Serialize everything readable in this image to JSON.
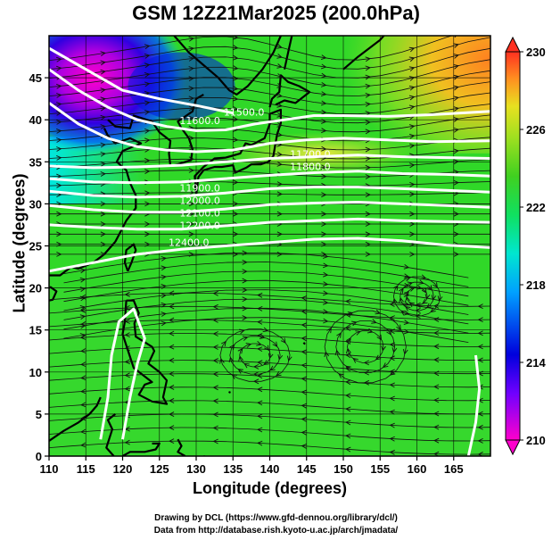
{
  "title": "GSM 12Z21Mar2025 (200.0hPa)",
  "xlabel": "Longitude (degrees)",
  "ylabel": "Latitude  (degrees)",
  "credits": [
    "Drawing by DCL (https://www.gfd-dennou.org/library/dcl/)",
    "Data from http://database.rish.kyoto-u.ac.jp/arch/jmadata/"
  ],
  "chart_data": {
    "type": "heatmap",
    "title": "GSM 12Z21Mar2025 (200.0hPa)",
    "xlabel": "Longitude (degrees)",
    "ylabel": "Latitude  (degrees)",
    "xlim": [
      110,
      170
    ],
    "ylim": [
      0,
      50
    ],
    "xticks": [
      110,
      115,
      120,
      125,
      130,
      135,
      140,
      145,
      150,
      155,
      160,
      165
    ],
    "yticks": [
      0,
      5,
      10,
      15,
      20,
      25,
      30,
      35,
      40,
      45
    ],
    "colorbar": {
      "min": 210,
      "max": 230,
      "ticks": [
        210,
        214,
        218,
        222,
        226,
        230
      ],
      "colors": [
        "#ff00cc",
        "#8000ff",
        "#0000dd",
        "#00a0ff",
        "#00e6d0",
        "#10e060",
        "#30d020",
        "#80e020",
        "#e8e020",
        "#ff9020",
        "#ff3020"
      ]
    },
    "contour_labels": [
      {
        "text": "11500.0",
        "lon": 136.5,
        "lat": 40.5
      },
      {
        "text": "11600.0",
        "lon": 130.5,
        "lat": 39.5
      },
      {
        "text": "11700.0",
        "lon": 145.5,
        "lat": 35.5
      },
      {
        "text": "11800.0",
        "lon": 145.5,
        "lat": 34.0
      },
      {
        "text": "11900.0",
        "lon": 130.5,
        "lat": 31.5
      },
      {
        "text": "12000.0",
        "lon": 130.5,
        "lat": 30.0
      },
      {
        "text": "12100.0",
        "lon": 130.5,
        "lat": 28.5
      },
      {
        "text": "12200.0",
        "lon": 130.5,
        "lat": 27.0
      },
      {
        "text": "12400.0",
        "lon": 129.0,
        "lat": 25.0
      }
    ],
    "grid": true
  }
}
